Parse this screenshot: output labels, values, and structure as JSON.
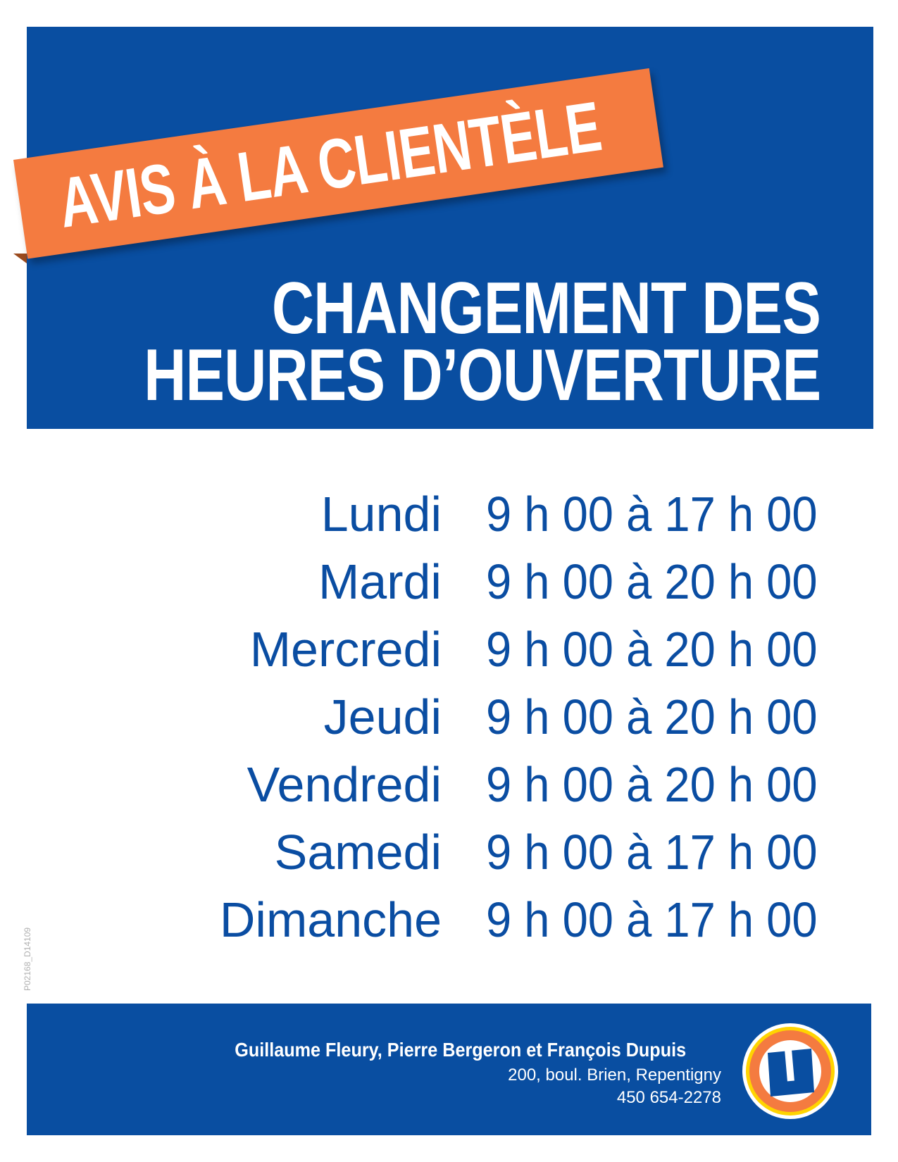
{
  "colors": {
    "brand_blue": "#094ea1",
    "accent_orange": "#f47b40",
    "text_blue": "#0a4da2"
  },
  "ribbon": {
    "text": "AVIS À LA CLIENTÈLE"
  },
  "title": {
    "line1": "CHANGEMENT DES",
    "line2": "HEURES D’OUVERTURE"
  },
  "hours": [
    {
      "day": "Lundi",
      "time": "9 h 00 à 17 h 00"
    },
    {
      "day": "Mardi",
      "time": "9 h 00 à 20 h 00"
    },
    {
      "day": "Mercredi",
      "time": "9 h 00 à 20 h 00"
    },
    {
      "day": "Jeudi",
      "time": "9 h 00 à 20 h 00"
    },
    {
      "day": "Vendredi",
      "time": "9 h 00 à 20 h 00"
    },
    {
      "day": "Samedi",
      "time": "9 h 00 à 17 h 00"
    },
    {
      "day": "Dimanche",
      "time": "9 h 00 à 17 h 00"
    }
  ],
  "doc_code": "P02168_D14109",
  "footer": {
    "owners": "Guillaume Fleury, Pierre Bergeron et François Dupuis",
    "address": "200, boul. Brien, Repentigny",
    "phone": "450 654-2278",
    "logo": {
      "icon": "u-logo-icon",
      "letter": "U"
    }
  }
}
